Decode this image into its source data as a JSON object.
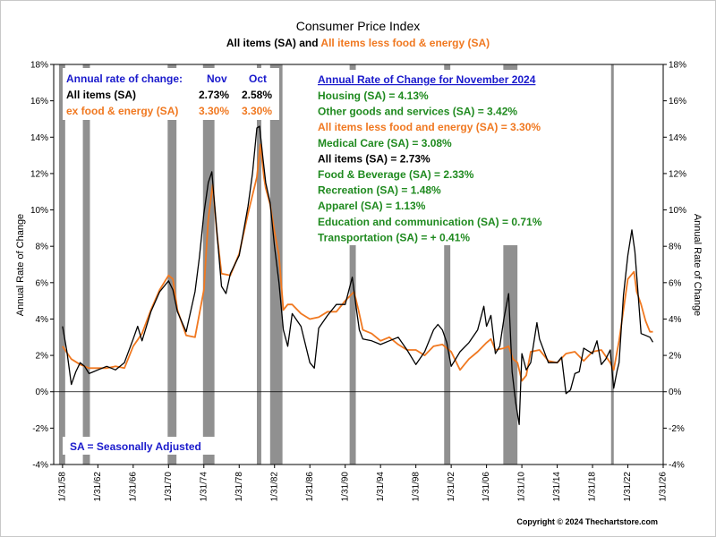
{
  "colors": {
    "all_items": "#000000",
    "core": "#f07820",
    "green": "#1f8a1f",
    "blue": "#1a1acc",
    "recession": "#909090",
    "plot_bg": "#ffffff",
    "frame_bg": "#ffffff"
  },
  "chart_data": {
    "type": "line",
    "title": "Consumer Price Index",
    "subtitle_part1": "All items (SA)",
    "subtitle_and": " and ",
    "subtitle_part2": "All items less food & energy (SA)",
    "ylabel_left": "Annual Rate of Change",
    "ylabel_right": "Annual Rate of Change",
    "ylim": [
      -4,
      18
    ],
    "xlim": [
      1957.0,
      2026.0
    ],
    "y_ticks": [
      -4,
      -2,
      0,
      2,
      4,
      6,
      8,
      10,
      12,
      14,
      16,
      18
    ],
    "y_tick_labels": [
      "-4%",
      "-2%",
      "0%",
      "2%",
      "4%",
      "6%",
      "8%",
      "10%",
      "12%",
      "14%",
      "16%",
      "18%"
    ],
    "x_ticks": [
      1958,
      1962,
      1966,
      1970,
      1974,
      1978,
      1982,
      1986,
      1990,
      1994,
      1998,
      2002,
      2006,
      2010,
      2014,
      2018,
      2022,
      2026
    ],
    "x_tick_labels": [
      "1/31/58",
      "1/31/62",
      "1/31/66",
      "1/31/70",
      "1/31/74",
      "1/31/78",
      "1/31/82",
      "1/31/86",
      "1/31/90",
      "1/31/94",
      "1/31/98",
      "1/31/02",
      "1/31/06",
      "1/31/10",
      "1/31/14",
      "1/31/18",
      "1/31/22",
      "1/31/26"
    ],
    "recessions": [
      [
        1957.6,
        1958.3
      ],
      [
        1960.3,
        1961.1
      ],
      [
        1969.9,
        1970.9
      ],
      [
        1973.9,
        1975.2
      ],
      [
        1980.0,
        1980.5
      ],
      [
        1981.5,
        1982.9
      ],
      [
        1990.5,
        1991.2
      ],
      [
        2001.2,
        2001.9
      ],
      [
        2007.9,
        2009.5
      ],
      [
        2020.1,
        2020.4
      ]
    ],
    "series": [
      {
        "name": "All items (SA)",
        "x": [
          1958.0,
          1958.5,
          1959.0,
          1959.5,
          1960.0,
          1960.5,
          1961.0,
          1961.5,
          1962.0,
          1963.0,
          1964.0,
          1965.0,
          1966.0,
          1966.5,
          1967.0,
          1968.0,
          1969.0,
          1970.0,
          1970.5,
          1971.0,
          1972.0,
          1973.0,
          1973.5,
          1974.0,
          1974.5,
          1974.9,
          1975.3,
          1976.0,
          1976.5,
          1977.0,
          1978.0,
          1979.0,
          1979.5,
          1980.0,
          1980.3,
          1980.7,
          1981.0,
          1981.5,
          1982.0,
          1982.5,
          1983.0,
          1983.5,
          1984.0,
          1985.0,
          1986.0,
          1986.5,
          1987.0,
          1988.0,
          1989.0,
          1990.0,
          1990.8,
          1991.2,
          1991.6,
          1992.0,
          1993.0,
          1994.0,
          1995.0,
          1996.0,
          1997.0,
          1998.0,
          1999.0,
          2000.0,
          2000.5,
          2001.0,
          2001.5,
          2002.0,
          2002.5,
          2003.0,
          2004.0,
          2005.0,
          2005.7,
          2006.0,
          2006.5,
          2007.0,
          2007.5,
          2008.0,
          2008.5,
          2008.9,
          2009.3,
          2009.7,
          2010.0,
          2010.5,
          2011.0,
          2011.7,
          2012.0,
          2013.0,
          2014.0,
          2014.5,
          2015.0,
          2015.5,
          2016.0,
          2016.5,
          2017.0,
          2018.0,
          2018.5,
          2019.0,
          2019.5,
          2020.0,
          2020.4,
          2020.8,
          2021.0,
          2021.5,
          2022.0,
          2022.45,
          2022.8,
          2023.0,
          2023.5,
          2024.0,
          2024.5,
          2024.83
        ],
        "y": [
          3.6,
          2.2,
          0.4,
          1.1,
          1.6,
          1.4,
          1.0,
          1.1,
          1.2,
          1.4,
          1.2,
          1.6,
          2.9,
          3.6,
          2.8,
          4.4,
          5.5,
          6.1,
          5.6,
          4.4,
          3.3,
          5.5,
          7.4,
          9.8,
          11.5,
          12.1,
          9.8,
          5.8,
          5.4,
          6.5,
          7.5,
          10.2,
          12.0,
          14.5,
          14.6,
          12.8,
          11.5,
          10.4,
          8.0,
          6.0,
          3.4,
          2.5,
          4.3,
          3.6,
          1.6,
          1.3,
          3.5,
          4.2,
          4.8,
          4.8,
          6.3,
          4.8,
          3.4,
          2.9,
          2.8,
          2.6,
          2.8,
          3.0,
          2.3,
          1.5,
          2.2,
          3.4,
          3.7,
          3.4,
          2.7,
          1.4,
          1.8,
          2.2,
          2.7,
          3.4,
          4.7,
          3.6,
          4.2,
          2.1,
          2.5,
          4.1,
          5.4,
          1.1,
          -0.6,
          -1.8,
          2.1,
          1.2,
          1.6,
          3.8,
          2.9,
          1.6,
          1.6,
          1.9,
          -0.1,
          0.1,
          1.0,
          1.1,
          2.4,
          2.1,
          2.8,
          1.5,
          1.8,
          2.3,
          0.2,
          1.2,
          1.6,
          5.3,
          7.5,
          8.9,
          7.7,
          6.4,
          3.2,
          3.1,
          3.0,
          2.73
        ]
      },
      {
        "name": "All items less food & energy (SA)",
        "x": [
          1958.0,
          1959.0,
          1960.0,
          1961.0,
          1962.0,
          1963.0,
          1964.0,
          1965.0,
          1966.0,
          1967.0,
          1968.0,
          1969.0,
          1970.0,
          1970.5,
          1971.0,
          1972.0,
          1973.0,
          1974.0,
          1974.5,
          1975.0,
          1975.5,
          1976.0,
          1977.0,
          1978.0,
          1979.0,
          1980.0,
          1980.4,
          1980.8,
          1981.0,
          1981.5,
          1982.0,
          1982.5,
          1983.0,
          1983.5,
          1984.0,
          1985.0,
          1986.0,
          1987.0,
          1988.0,
          1989.0,
          1990.0,
          1991.0,
          1991.5,
          1992.0,
          1993.0,
          1994.0,
          1995.0,
          1996.0,
          1997.0,
          1998.0,
          1999.0,
          2000.0,
          2001.0,
          2002.0,
          2003.0,
          2004.0,
          2005.0,
          2006.0,
          2006.5,
          2007.0,
          2008.0,
          2008.5,
          2009.0,
          2009.5,
          2010.0,
          2010.5,
          2011.0,
          2012.0,
          2013.0,
          2014.0,
          2015.0,
          2016.0,
          2017.0,
          2018.0,
          2019.0,
          2020.0,
          2020.4,
          2021.0,
          2021.5,
          2022.0,
          2022.7,
          2023.0,
          2023.5,
          2024.0,
          2024.5,
          2024.83
        ],
        "y": [
          2.5,
          1.8,
          1.5,
          1.3,
          1.3,
          1.3,
          1.4,
          1.3,
          2.5,
          3.2,
          4.5,
          5.6,
          6.4,
          6.2,
          4.5,
          3.1,
          3.0,
          5.6,
          9.5,
          11.4,
          8.6,
          6.5,
          6.4,
          7.6,
          9.8,
          11.8,
          13.6,
          11.8,
          11.2,
          10.3,
          8.8,
          7.5,
          4.5,
          4.8,
          4.8,
          4.3,
          4.0,
          4.1,
          4.4,
          4.4,
          5.0,
          5.5,
          4.5,
          3.4,
          3.2,
          2.8,
          3.0,
          2.6,
          2.3,
          2.3,
          2.0,
          2.5,
          2.6,
          2.2,
          1.2,
          1.8,
          2.2,
          2.7,
          2.9,
          2.3,
          2.4,
          2.5,
          1.8,
          1.6,
          0.6,
          0.9,
          2.2,
          2.3,
          1.7,
          1.6,
          2.1,
          2.2,
          1.7,
          2.2,
          2.3,
          1.6,
          1.2,
          2.8,
          4.5,
          6.2,
          6.6,
          5.5,
          4.8,
          3.9,
          3.3,
          3.3
        ]
      }
    ]
  },
  "annotations": {
    "left_box": {
      "heading": "Annual rate of change:",
      "col1": "Nov",
      "col2": "Oct",
      "row1_label": "All items (SA)",
      "row1_v1": "2.73%",
      "row1_v2": "2.58%",
      "row2_label": "ex food & energy (SA)",
      "row2_v1": "3.30%",
      "row2_v2": "3.30%"
    },
    "right_box": {
      "heading": "Annual Rate of Change for November 2024",
      "items": [
        "Housing (SA) = 4.13%",
        "Other goods and services (SA) = 3.42%",
        "All items less food and energy (SA) = 3.30%",
        "Medical Care (SA) =  3.08%",
        "All items  (SA) =  2.73%",
        "Food & Beverage (SA) =  2.33%",
        "Recreation (SA) = 1.48%",
        "Apparel (SA) =   1.13%",
        "Education and communication (SA) = 0.71%",
        "Transportation (SA) =  + 0.41%"
      ],
      "item_colors": [
        "green",
        "green",
        "core",
        "green",
        "all_items",
        "green",
        "green",
        "green",
        "green",
        "green"
      ]
    },
    "sa_note": "SA = Seasonally Adjusted",
    "copyright": "Copyright © 2024 Thechartstore.com"
  }
}
